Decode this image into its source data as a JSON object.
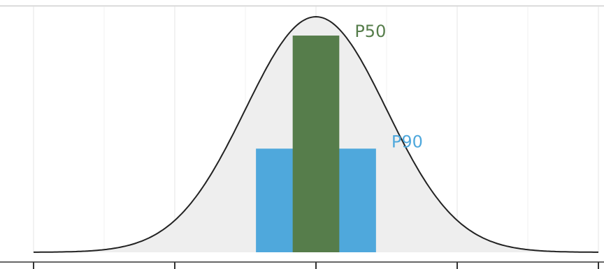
{
  "chart_data": {
    "type": "area",
    "title": "",
    "xlabel": "",
    "ylabel": "",
    "grid": true,
    "distribution": {
      "shape": "normal",
      "mean": 0,
      "sd": 1,
      "xlim": [
        -4,
        4
      ]
    },
    "x_ticks": [
      -4,
      -2,
      0,
      2,
      4
    ],
    "x_tick_labels": [],
    "series": [
      {
        "name": "P50",
        "lower": -0.33,
        "upper": 0.33,
        "height": 0.92,
        "color": "#567d4b"
      },
      {
        "name": "P90",
        "lower": -0.85,
        "upper": 0.85,
        "height": 0.44,
        "color": "#4fa8dc"
      }
    ],
    "colors": {
      "fill": "#eeeeee",
      "curve": "#222222",
      "grid": "#e6e6e6",
      "axis": "#333333"
    }
  }
}
